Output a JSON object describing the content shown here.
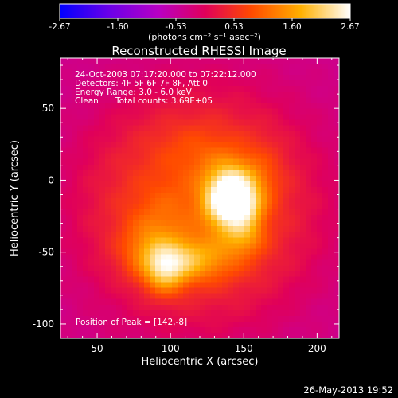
{
  "chart_data": {
    "type": "heatmap",
    "title": "Reconstructed RHESSI Image",
    "xlabel": "Heliocentric X (arcsec)",
    "ylabel": "Heliocentric Y (arcsec)",
    "xlim": [
      25,
      215
    ],
    "ylim": [
      -110,
      85
    ],
    "x_ticks": [
      50,
      100,
      150,
      200
    ],
    "y_ticks": [
      -100,
      -50,
      0,
      50
    ],
    "colorbar": {
      "ticks": [
        "-2.67",
        "-1.60",
        "-0.53",
        "0.53",
        "1.60",
        "2.67"
      ],
      "range": [
        -2.67,
        2.67
      ],
      "unit_label": "(photons cm⁻² s⁻¹ asec⁻²)"
    },
    "annotations": [
      "24-Oct-2003 07:17:20.000 to 07:22:12.000",
      "Detectors: 4F 5F 6F 7F 8F, Att 0",
      "Energy Range: 3.0 - 6.0 keV",
      "Clean",
      "Total counts: 3.69E+05"
    ],
    "peak_label": "Position of Peak = [142,-8]",
    "peak": {
      "x": 142,
      "y": -8,
      "value": 2.67
    },
    "background_level": 0.55,
    "features": [
      {
        "x": 142,
        "y": -8,
        "amp": 2.4,
        "sx": 13,
        "sy": 14
      },
      {
        "x": 136,
        "y": -22,
        "amp": 0.9,
        "sx": 9,
        "sy": 12
      },
      {
        "x": 152,
        "y": -22,
        "amp": 0.8,
        "sx": 8,
        "sy": 10
      },
      {
        "x": 150,
        "y": -40,
        "amp": 0.8,
        "sx": 10,
        "sy": 9
      },
      {
        "x": 112,
        "y": -55,
        "amp": 1.3,
        "sx": 22,
        "sy": 11
      },
      {
        "x": 96,
        "y": -65,
        "amp": 1.15,
        "sx": 10,
        "sy": 11
      },
      {
        "x": 85,
        "y": -45,
        "amp": 0.6,
        "sx": 13,
        "sy": 14
      },
      {
        "x": 100,
        "y": -22,
        "amp": 0.45,
        "sx": 18,
        "sy": 18
      },
      {
        "x": 120,
        "y": 20,
        "amp": 0.35,
        "sx": 20,
        "sy": 14
      },
      {
        "x": 165,
        "y": 5,
        "amp": 0.25,
        "sx": 10,
        "sy": 18
      }
    ]
  },
  "footer": {
    "timestamp": "26-May-2013 19:52"
  }
}
